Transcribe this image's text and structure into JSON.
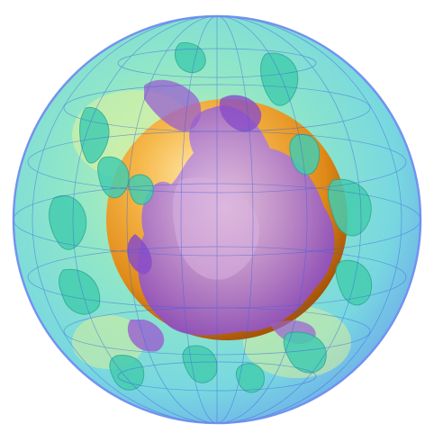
{
  "colors": {
    "background": "#ffffff",
    "shell_fill": "#7fe0d6",
    "shell_edge": "#6fa0e8",
    "grid_lines": "#3b5fe0",
    "core_light": "#ffd27a",
    "core_mid": "#f0a028",
    "core_dark": "#b8620a",
    "plume_purple": "#9a5fd0",
    "plume_purple_dark": "#6a38a8",
    "plume_teal": "#4fd2b0",
    "plume_teal_dark": "#2aa890",
    "highlight_yellow": "#e8f07a"
  },
  "icons": [
    "globe-shell",
    "core-sphere",
    "purple-plume",
    "teal-plume",
    "lat-long-grid"
  ]
}
